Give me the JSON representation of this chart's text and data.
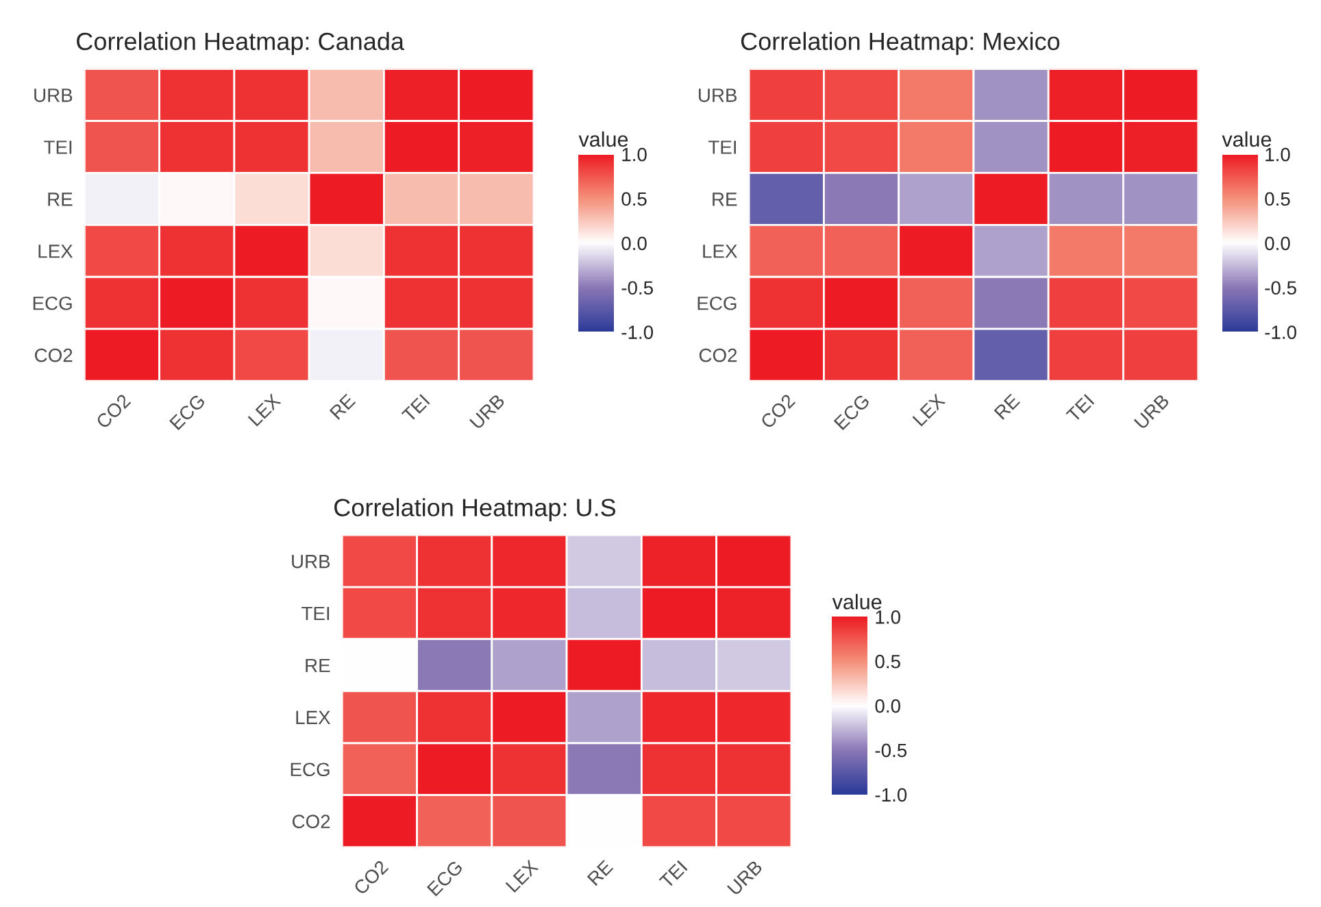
{
  "chart_data": [
    {
      "type": "heatmap",
      "title": "Correlation Heatmap: Canada",
      "legend_title": "value",
      "categories": [
        "CO2",
        "ECG",
        "LEX",
        "RE",
        "TEI",
        "URB"
      ],
      "y_categories": [
        "URB",
        "TEI",
        "RE",
        "LEX",
        "ECG",
        "CO2"
      ],
      "cells": [
        [
          0.75,
          0.9,
          0.9,
          0.3,
          0.98,
          1
        ],
        [
          0.75,
          0.9,
          0.9,
          0.3,
          1,
          0.98
        ],
        [
          -0.05,
          0.03,
          0.15,
          1,
          0.3,
          0.3
        ],
        [
          0.8,
          0.9,
          1,
          0.15,
          0.9,
          0.9
        ],
        [
          0.9,
          1,
          0.9,
          0.03,
          0.9,
          0.9
        ],
        [
          1,
          0.9,
          0.8,
          -0.05,
          0.75,
          0.75
        ]
      ],
      "clim": [
        -1,
        1
      ],
      "cticks": [
        {
          "value": -1,
          "label": "-1.0"
        },
        {
          "value": -0.5,
          "label": "-0.5"
        },
        {
          "value": 0,
          "label": "0.0"
        },
        {
          "value": 0.5,
          "label": "0.5"
        },
        {
          "value": 1,
          "label": "1.0"
        }
      ]
    },
    {
      "type": "heatmap",
      "title": "Correlation Heatmap: Mexico",
      "legend_title": "value",
      "categories": [
        "CO2",
        "ECG",
        "LEX",
        "RE",
        "TEI",
        "URB"
      ],
      "y_categories": [
        "URB",
        "TEI",
        "RE",
        "LEX",
        "ECG",
        "CO2"
      ],
      "cells": [
        [
          0.85,
          0.8,
          0.6,
          -0.4,
          0.98,
          1
        ],
        [
          0.85,
          0.8,
          0.6,
          -0.4,
          1,
          0.98
        ],
        [
          -0.7,
          -0.5,
          -0.35,
          1,
          -0.4,
          -0.4
        ],
        [
          0.7,
          0.7,
          1,
          -0.35,
          0.6,
          0.6
        ],
        [
          0.9,
          1,
          0.7,
          -0.5,
          0.85,
          0.8
        ],
        [
          1,
          0.9,
          0.7,
          -0.7,
          0.85,
          0.85
        ]
      ],
      "clim": [
        -1,
        1
      ],
      "cticks": [
        {
          "value": -1,
          "label": "-1.0"
        },
        {
          "value": -0.5,
          "label": "-0.5"
        },
        {
          "value": 0,
          "label": "0.0"
        },
        {
          "value": 0.5,
          "label": "0.5"
        },
        {
          "value": 1,
          "label": "1.0"
        }
      ]
    },
    {
      "type": "heatmap",
      "title": "Correlation Heatmap: U.S",
      "legend_title": "value",
      "categories": [
        "CO2",
        "ECG",
        "LEX",
        "RE",
        "TEI",
        "URB"
      ],
      "y_categories": [
        "URB",
        "TEI",
        "RE",
        "LEX",
        "ECG",
        "CO2"
      ],
      "cells": [
        [
          0.8,
          0.9,
          0.95,
          -0.2,
          0.97,
          1
        ],
        [
          0.8,
          0.9,
          0.95,
          -0.25,
          1,
          0.97
        ],
        [
          0.0,
          -0.5,
          -0.35,
          1,
          -0.25,
          -0.2
        ],
        [
          0.75,
          0.9,
          1,
          -0.35,
          0.95,
          0.95
        ],
        [
          0.7,
          1,
          0.9,
          -0.5,
          0.9,
          0.9
        ],
        [
          1,
          0.7,
          0.75,
          0.0,
          0.8,
          0.8
        ]
      ],
      "clim": [
        -1,
        1
      ],
      "cticks": [
        {
          "value": -1,
          "label": "-1.0"
        },
        {
          "value": -0.5,
          "label": "-0.5"
        },
        {
          "value": 0,
          "label": "0.0"
        },
        {
          "value": 0.5,
          "label": "0.5"
        },
        {
          "value": 1,
          "label": "1.0"
        }
      ]
    }
  ]
}
